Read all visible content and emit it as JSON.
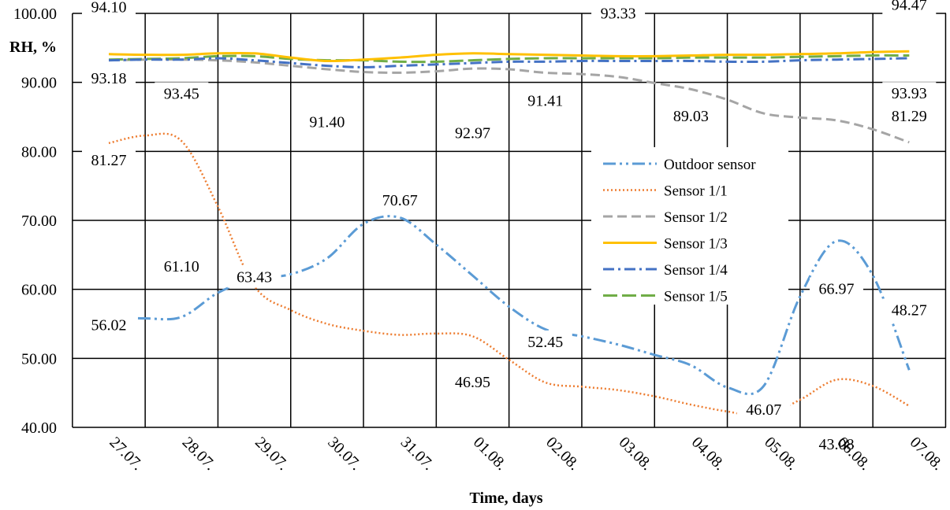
{
  "chart_data": {
    "type": "line",
    "ylabel": "RH, %",
    "xlabel": "Time, days",
    "ylim": [
      40,
      100
    ],
    "y_ticks": [
      "40.00",
      "50.00",
      "60.00",
      "70.00",
      "80.00",
      "90.00",
      "100.00"
    ],
    "categories": [
      "27.07.",
      "28.07.",
      "29.07.",
      "30.07.",
      "31.07.",
      "01.08.",
      "02.08.",
      "03.08.",
      "04.08.",
      "05.08.",
      "06.08.",
      "07.08."
    ],
    "grid": true,
    "legend_position": "right-center",
    "series": [
      {
        "name": "Outdoor sensor",
        "color": "#5B9BD5",
        "dash": "dash-dot-dot",
        "x": [
          0,
          0.5,
          1,
          1.5,
          2,
          2.5,
          3,
          3.5,
          4,
          4.5,
          5,
          5.5,
          6,
          6.5,
          7,
          7.5,
          8,
          8.5,
          9,
          9.5,
          10,
          10.5,
          11
        ],
        "values": [
          56.0,
          55.8,
          56.0,
          59.5,
          61.5,
          62.2,
          64.5,
          69.5,
          70.4,
          66.5,
          62.0,
          57.5,
          54.2,
          53.2,
          52.0,
          50.5,
          49.0,
          45.8,
          46.0,
          59.0,
          67.0,
          62.0,
          48.3
        ]
      },
      {
        "name": "Sensor 1/1",
        "color": "#ED7D31",
        "dash": "dotted",
        "x": [
          0,
          0.5,
          1,
          1.5,
          2,
          2.5,
          3,
          3.5,
          4,
          4.5,
          5,
          5.5,
          6,
          6.5,
          7,
          7.5,
          8,
          8.5,
          9,
          9.5,
          10,
          10.5,
          11
        ],
        "values": [
          81.2,
          82.3,
          81.5,
          72.0,
          60.5,
          57.0,
          55.0,
          54.0,
          53.4,
          53.6,
          53.2,
          49.8,
          46.5,
          45.9,
          45.4,
          44.5,
          43.3,
          42.3,
          41.7,
          44.0,
          46.9,
          46.0,
          43.1
        ]
      },
      {
        "name": "Sensor 1/2",
        "color": "#A5A5A5",
        "dash": "dashed",
        "x": [
          0,
          0.5,
          1,
          1.5,
          2,
          2.5,
          3,
          3.5,
          4,
          4.5,
          5,
          5.5,
          6,
          6.5,
          7,
          7.5,
          8,
          8.5,
          9,
          9.5,
          10,
          10.5,
          11
        ],
        "values": [
          93.2,
          93.3,
          93.3,
          93.2,
          92.9,
          92.4,
          91.9,
          91.5,
          91.4,
          91.6,
          92.0,
          91.9,
          91.4,
          91.2,
          90.8,
          89.9,
          89.0,
          87.5,
          85.5,
          84.9,
          84.5,
          83.2,
          81.3
        ]
      },
      {
        "name": "Sensor 1/3",
        "color": "#FFC000",
        "dash": "solid",
        "x": [
          0,
          0.5,
          1,
          1.5,
          2,
          2.5,
          3,
          3.5,
          4,
          4.5,
          5,
          5.5,
          6,
          6.5,
          7,
          7.5,
          8,
          8.5,
          9,
          9.5,
          10,
          10.5,
          11
        ],
        "values": [
          94.1,
          94.0,
          94.0,
          94.2,
          94.2,
          93.6,
          93.1,
          93.3,
          93.6,
          94.0,
          94.2,
          94.1,
          94.0,
          93.9,
          93.8,
          93.8,
          93.9,
          94.0,
          94.0,
          94.1,
          94.2,
          94.4,
          94.5
        ]
      },
      {
        "name": "Sensor 1/4",
        "color": "#4472C4",
        "dash": "dash-dot",
        "x": [
          0,
          0.5,
          1,
          1.5,
          2,
          2.5,
          3,
          3.5,
          4,
          4.5,
          5,
          5.5,
          6,
          6.5,
          7,
          7.5,
          8,
          8.5,
          9,
          9.5,
          10,
          10.5,
          11
        ],
        "values": [
          93.2,
          93.3,
          93.3,
          93.5,
          93.2,
          92.8,
          92.4,
          92.2,
          92.4,
          92.6,
          92.8,
          93.0,
          93.0,
          93.1,
          93.1,
          93.1,
          93.1,
          93.0,
          93.0,
          93.2,
          93.3,
          93.4,
          93.5
        ]
      },
      {
        "name": "Sensor 1/5",
        "color": "#70AD47",
        "dash": "long-dash",
        "x": [
          0,
          0.5,
          1,
          1.5,
          2,
          2.5,
          3,
          3.5,
          4,
          4.5,
          5,
          5.5,
          6,
          6.5,
          7,
          7.5,
          8,
          8.5,
          9,
          9.5,
          10,
          10.5,
          11
        ],
        "values": [
          93.3,
          93.4,
          93.5,
          93.8,
          93.8,
          93.4,
          93.2,
          93.2,
          93.0,
          93.0,
          93.2,
          93.4,
          93.5,
          93.5,
          93.5,
          93.5,
          93.6,
          93.6,
          93.6,
          93.7,
          93.8,
          93.9,
          93.9
        ]
      }
    ],
    "data_labels": [
      {
        "text": "94.10",
        "x": 0,
        "y": 94.1
      },
      {
        "text": "93.18",
        "x": 0,
        "y": 93.18
      },
      {
        "text": "81.27",
        "x": 0,
        "y": 81.27
      },
      {
        "text": "56.02",
        "x": 0,
        "y": 56.02
      },
      {
        "text": "93.45",
        "x": 1,
        "y": 93.45
      },
      {
        "text": "61.10",
        "x": 1,
        "y": 61.1
      },
      {
        "text": "63.43",
        "x": 2,
        "y": 63.43
      },
      {
        "text": "91.40",
        "x": 3,
        "y": 91.4
      },
      {
        "text": "70.67",
        "x": 4,
        "y": 70.67
      },
      {
        "text": "92.97",
        "x": 5,
        "y": 92.97
      },
      {
        "text": "46.95",
        "x": 5,
        "y": 46.95
      },
      {
        "text": "91.41",
        "x": 6,
        "y": 91.41
      },
      {
        "text": "52.45",
        "x": 6,
        "y": 52.45
      },
      {
        "text": "93.33",
        "x": 7,
        "y": 93.33
      },
      {
        "text": "89.03",
        "x": 8,
        "y": 89.03
      },
      {
        "text": "46.07",
        "x": 9,
        "y": 46.07
      },
      {
        "text": "66.97",
        "x": 10,
        "y": 66.97
      },
      {
        "text": "43.08",
        "x": 10,
        "y": 43.08
      },
      {
        "text": "94.47",
        "x": 11,
        "y": 94.47
      },
      {
        "text": "93.93",
        "x": 11,
        "y": 93.93
      },
      {
        "text": "81.29",
        "x": 11,
        "y": 81.29
      },
      {
        "text": "48.27",
        "x": 11,
        "y": 48.27
      }
    ]
  }
}
